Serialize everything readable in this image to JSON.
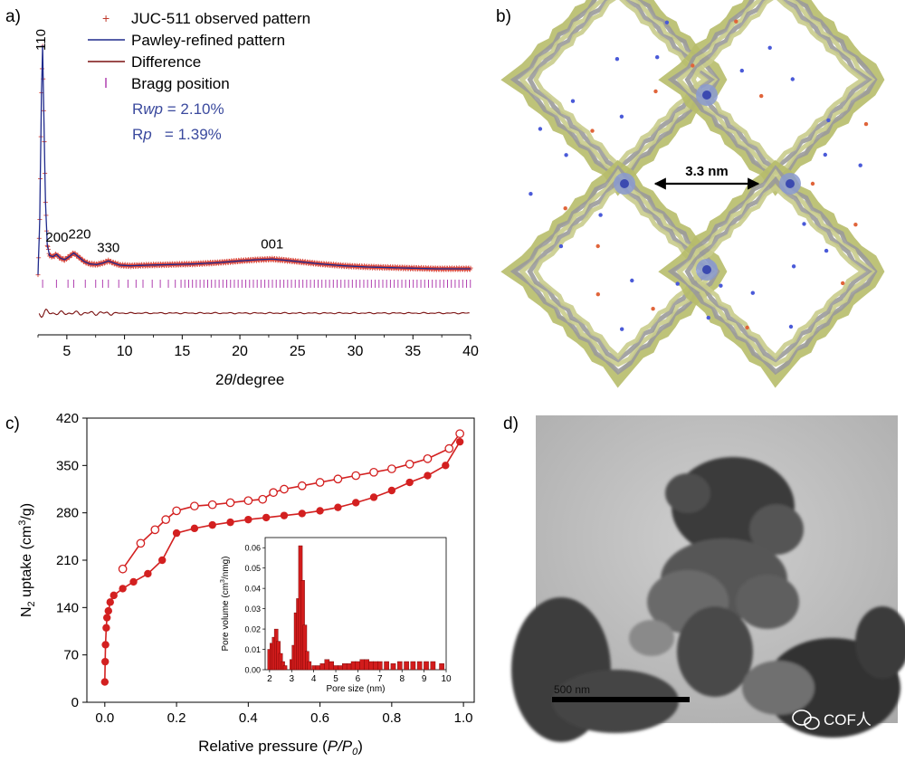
{
  "panels": {
    "a": "a)",
    "b": "b)",
    "c": "c)",
    "d": "d)"
  },
  "chart_data": [
    {
      "panel": "a",
      "type": "line",
      "xlabel_prefix": "2",
      "xlabel_theta": "θ",
      "xlabel_suffix": "/degree",
      "xlim": [
        2.5,
        40
      ],
      "xticks": [
        5,
        10,
        15,
        20,
        25,
        30,
        35,
        40
      ],
      "legend": {
        "observed": "JUC-511 observed pattern",
        "pawley": "Pawley-refined pattern",
        "difference": "Difference",
        "bragg": "Bragg position"
      },
      "stats": {
        "rwp_label": "R",
        "rwp_sym": "wp",
        "rwp_value": " = 2.10%",
        "rp_label": "R",
        "rp_sym": "p",
        "rp_value": "   = 1.39%"
      },
      "peaks": [
        {
          "label": "110",
          "x": 2.9
        },
        {
          "label": "200",
          "x": 4.1
        },
        {
          "label": "220",
          "x": 5.6
        },
        {
          "label": "330",
          "x": 8.6
        },
        {
          "label": "001",
          "x": 22.8
        }
      ],
      "series": [
        {
          "name": "Pawley-refined pattern",
          "x": [
            2.5,
            2.65,
            2.8,
            2.9,
            3.0,
            3.15,
            3.3,
            3.5,
            3.8,
            4.1,
            4.4,
            4.8,
            5.2,
            5.6,
            6.0,
            6.5,
            7.0,
            7.6,
            8.2,
            8.6,
            9.0,
            9.6,
            10.5,
            12,
            14,
            16,
            18,
            20,
            21.5,
            22.8,
            24,
            25.5,
            27,
            29,
            31,
            33,
            35,
            37,
            39,
            40
          ],
          "y": [
            30,
            120,
            330,
            410,
            300,
            150,
            80,
            62,
            60,
            64,
            58,
            55,
            60,
            66,
            60,
            52,
            48,
            47,
            50,
            53,
            50,
            46,
            45,
            46,
            47,
            48,
            50,
            53,
            55,
            56,
            54,
            51,
            48,
            45,
            43,
            42,
            41,
            40,
            40,
            40
          ]
        }
      ]
    },
    {
      "panel": "c",
      "type": "line",
      "xlabel_main": "Relative pressure (",
      "xlabel_p": "P/P",
      "xlabel_sub": "0",
      "xlabel_close": ")",
      "ylabel_main": "N",
      "ylabel_sub": "2",
      "ylabel_mid": " uptake (cm",
      "ylabel_sup": "3",
      "ylabel_end": "/g)",
      "xlim": [
        -0.05,
        1.03
      ],
      "ylim": [
        0,
        420
      ],
      "xticks": [
        "0.0",
        "0.2",
        "0.4",
        "0.6",
        "0.8",
        "1.0"
      ],
      "yticks": [
        "0",
        "70",
        "140",
        "210",
        "280",
        "350",
        "420"
      ],
      "series": [
        {
          "name": "adsorption",
          "x": [
            0.0,
            0.001,
            0.002,
            0.004,
            0.006,
            0.01,
            0.015,
            0.025,
            0.05,
            0.08,
            0.12,
            0.16,
            0.2,
            0.25,
            0.3,
            0.35,
            0.4,
            0.45,
            0.5,
            0.55,
            0.6,
            0.65,
            0.7,
            0.75,
            0.8,
            0.85,
            0.9,
            0.95,
            0.99
          ],
          "y": [
            30,
            60,
            85,
            110,
            125,
            135,
            148,
            158,
            168,
            178,
            190,
            210,
            250,
            257,
            262,
            266,
            270,
            273,
            276,
            279,
            283,
            288,
            295,
            303,
            313,
            325,
            335,
            350,
            385
          ]
        },
        {
          "name": "desorption",
          "x": [
            0.99,
            0.96,
            0.9,
            0.85,
            0.8,
            0.75,
            0.7,
            0.65,
            0.6,
            0.55,
            0.5,
            0.47,
            0.44,
            0.4,
            0.35,
            0.3,
            0.25,
            0.2,
            0.17,
            0.14,
            0.1,
            0.05
          ],
          "y": [
            397,
            375,
            360,
            352,
            345,
            340,
            335,
            330,
            325,
            320,
            315,
            310,
            300,
            298,
            295,
            292,
            290,
            283,
            270,
            255,
            235,
            197
          ]
        }
      ],
      "inset": {
        "type": "bar",
        "xlabel": "Pore size (nm)",
        "ylabel_a": "Pore volume (cm",
        "ylabel_sup": "3",
        "ylabel_b": "/nmg)",
        "xlim": [
          1.8,
          10
        ],
        "ylim": [
          0,
          0.065
        ],
        "xticks": [
          "2",
          "3",
          "4",
          "5",
          "6",
          "7",
          "8",
          "9",
          "10"
        ],
        "yticks": [
          "0.00",
          "0.01",
          "0.02",
          "0.03",
          "0.04",
          "0.05",
          "0.06"
        ],
        "x": [
          2.0,
          2.1,
          2.2,
          2.3,
          2.4,
          2.5,
          2.6,
          2.7,
          3.0,
          3.1,
          3.2,
          3.3,
          3.4,
          3.5,
          3.6,
          3.7,
          3.8,
          4.0,
          4.2,
          4.4,
          4.6,
          4.8,
          5.0,
          5.2,
          5.4,
          5.6,
          5.8,
          6.0,
          6.2,
          6.4,
          6.6,
          6.8,
          7.0,
          7.3,
          7.6,
          7.9,
          8.2,
          8.5,
          8.8,
          9.1,
          9.4,
          9.8
        ],
        "values": [
          0.01,
          0.013,
          0.016,
          0.02,
          0.014,
          0.008,
          0.004,
          0.002,
          0.005,
          0.012,
          0.028,
          0.035,
          0.061,
          0.044,
          0.022,
          0.009,
          0.004,
          0.002,
          0.002,
          0.003,
          0.005,
          0.004,
          0.002,
          0.002,
          0.003,
          0.003,
          0.004,
          0.004,
          0.005,
          0.005,
          0.004,
          0.004,
          0.004,
          0.004,
          0.003,
          0.004,
          0.004,
          0.004,
          0.004,
          0.004,
          0.004,
          0.003
        ]
      }
    }
  ],
  "panel_b": {
    "annotation": "3.3 nm"
  },
  "panel_d": {
    "scale_label": "500  nm",
    "watermark": "COF人"
  }
}
